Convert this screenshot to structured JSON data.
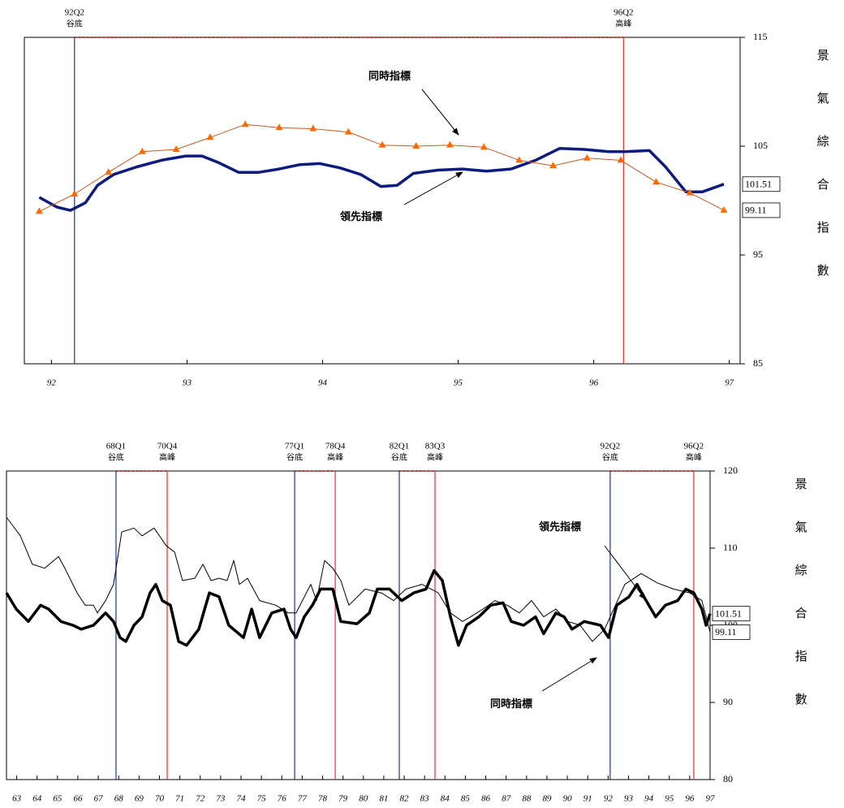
{
  "chart_data": [
    {
      "type": "line",
      "y_axis_title": "景氣綜合指數",
      "xlim": [
        91.8,
        97.08
      ],
      "xticks": [
        92,
        93,
        94,
        95,
        96,
        97
      ],
      "ylim": [
        85,
        115
      ],
      "yticks": [
        85,
        95,
        105,
        115
      ],
      "markers": [
        {
          "x": 92.17,
          "label": "92Q2",
          "note": "谷底",
          "color": "#1f2f9e"
        },
        {
          "x": 96.22,
          "label": "96Q2",
          "note": "高峰",
          "color": "#e0302a"
        }
      ],
      "series": [
        {
          "name": "領先指標",
          "color": "#0d1b7c",
          "x": [
            91.91,
            92.04,
            92.14,
            92.25,
            92.34,
            92.46,
            92.63,
            92.81,
            92.99,
            93.11,
            93.23,
            93.38,
            93.53,
            93.68,
            93.83,
            93.98,
            94.13,
            94.28,
            94.43,
            94.55,
            94.67,
            94.85,
            95.03,
            95.21,
            95.39,
            95.57,
            95.75,
            95.93,
            96.11,
            96.23,
            96.41,
            96.53,
            96.68,
            96.8,
            96.96
          ],
          "values": [
            100.3,
            99.4,
            99.1,
            99.8,
            101.4,
            102.4,
            103.1,
            103.7,
            104.1,
            104.1,
            103.5,
            102.6,
            102.6,
            102.9,
            103.3,
            103.4,
            103.0,
            102.4,
            101.3,
            101.4,
            102.5,
            102.8,
            102.9,
            102.7,
            102.9,
            103.7,
            104.8,
            104.7,
            104.5,
            104.5,
            104.6,
            103.1,
            100.8,
            100.8,
            101.51
          ]
        },
        {
          "name": "同時指標",
          "color": "#c55a1e",
          "marker": "triangle",
          "marker_color": "#ff6a00",
          "x": [
            91.91,
            92.17,
            92.42,
            92.67,
            92.92,
            93.17,
            93.43,
            93.68,
            93.93,
            94.19,
            94.44,
            94.69,
            94.94,
            95.19,
            95.45,
            95.7,
            95.95,
            96.2,
            96.46,
            96.71,
            96.96
          ],
          "values": [
            99.0,
            100.6,
            102.6,
            104.5,
            104.7,
            105.8,
            107.0,
            106.7,
            106.6,
            106.3,
            105.1,
            105.0,
            105.1,
            104.9,
            103.7,
            103.2,
            103.9,
            103.7,
            101.7,
            100.7,
            99.11
          ]
        }
      ]
    },
    {
      "type": "line",
      "y_axis_title": "景氣綜合指數",
      "xlim": [
        62.5,
        97
      ],
      "xticks": [
        63,
        64,
        65,
        66,
        67,
        68,
        69,
        70,
        71,
        72,
        73,
        74,
        75,
        76,
        77,
        78,
        79,
        80,
        81,
        82,
        83,
        84,
        85,
        86,
        87,
        88,
        89,
        90,
        91,
        92,
        93,
        94,
        95,
        96,
        97
      ],
      "ylim": [
        80,
        120
      ],
      "yticks": [
        80,
        90,
        100,
        110,
        120
      ],
      "markers": [
        {
          "x": 67.87,
          "label": "68Q1",
          "note": "谷底",
          "color": "#1f2f9e"
        },
        {
          "x": 70.38,
          "label": "70Q4",
          "note": "高峰",
          "color": "#e0302a"
        },
        {
          "x": 76.63,
          "label": "77Q1",
          "note": "谷底",
          "color": "#1f2f9e"
        },
        {
          "x": 78.62,
          "label": "78Q4",
          "note": "高峰",
          "color": "#e0302a"
        },
        {
          "x": 81.76,
          "label": "82Q1",
          "note": "谷底",
          "color": "#1f2f9e"
        },
        {
          "x": 83.51,
          "label": "83Q3",
          "note": "高峰",
          "color": "#e0302a"
        },
        {
          "x": 92.1,
          "label": "92Q2",
          "note": "谷底",
          "color": "#1f2f9e"
        },
        {
          "x": 96.2,
          "label": "96Q2",
          "note": "高峰",
          "color": "#e0302a"
        }
      ],
      "series": [
        {
          "name": "領先指標",
          "color": "#000000",
          "width": 3.5,
          "x": [
            62.5,
            62.98,
            63.57,
            64.17,
            64.57,
            65.17,
            65.76,
            66.16,
            66.76,
            67.36,
            67.75,
            68.07,
            68.35,
            68.75,
            69.15,
            69.54,
            69.82,
            70.14,
            70.54,
            70.94,
            71.33,
            71.93,
            72.45,
            72.92,
            73.4,
            74.12,
            74.52,
            74.91,
            75.51,
            76.11,
            76.43,
            76.7,
            77.1,
            77.5,
            77.9,
            78.5,
            78.89,
            79.69,
            80.29,
            80.68,
            81.28,
            81.88,
            82.47,
            83.07,
            83.47,
            83.87,
            84.27,
            84.66,
            85.06,
            85.66,
            86.25,
            86.85,
            87.25,
            87.85,
            88.44,
            88.84,
            89.44,
            89.84,
            90.23,
            90.83,
            91.63,
            92.02,
            92.42,
            93.02,
            93.42,
            93.82,
            94.33,
            94.81,
            95.41,
            95.81,
            96.2,
            96.6,
            96.8,
            97.0
          ],
          "values": [
            104.2,
            102.1,
            100.5,
            102.6,
            102.1,
            100.5,
            100.0,
            99.5,
            100.0,
            101.6,
            100.5,
            98.4,
            97.9,
            100.0,
            101.1,
            104.2,
            105.3,
            103.2,
            102.6,
            97.9,
            97.4,
            99.5,
            104.2,
            103.7,
            100.0,
            98.4,
            102.1,
            98.4,
            101.6,
            102.1,
            99.5,
            98.4,
            101.1,
            102.6,
            104.7,
            104.7,
            100.5,
            100.2,
            101.6,
            104.7,
            104.7,
            103.2,
            104.2,
            104.7,
            107.1,
            105.8,
            101.1,
            97.4,
            100.0,
            101.1,
            102.6,
            102.9,
            100.5,
            100.0,
            101.1,
            98.9,
            101.6,
            101.1,
            99.5,
            100.5,
            100.0,
            98.4,
            102.6,
            103.7,
            105.3,
            103.4,
            101.1,
            102.6,
            103.2,
            104.7,
            104.2,
            102.1,
            100.0,
            101.51
          ]
        },
        {
          "name": "同時指標",
          "color": "#000000",
          "width": 1,
          "x": [
            62.5,
            63.18,
            63.77,
            64.37,
            65.05,
            65.36,
            65.96,
            66.36,
            66.76,
            66.96,
            67.36,
            67.75,
            68.15,
            68.75,
            69.15,
            69.74,
            70.34,
            70.74,
            71.13,
            71.73,
            72.13,
            72.53,
            72.92,
            73.32,
            73.64,
            73.92,
            74.32,
            74.91,
            75.71,
            76.31,
            76.7,
            77.42,
            77.7,
            78.1,
            78.5,
            78.89,
            79.29,
            80.09,
            80.88,
            81.48,
            82.08,
            82.87,
            83.67,
            84.27,
            84.86,
            85.26,
            85.86,
            86.45,
            87.05,
            87.65,
            88.24,
            88.84,
            89.44,
            90.03,
            90.63,
            91.23,
            91.83,
            92.1,
            92.82,
            93.62,
            94.41,
            95.21,
            96.0,
            96.6,
            97.0
          ],
          "values": [
            114.0,
            111.6,
            107.9,
            107.4,
            108.9,
            107.4,
            104.2,
            102.6,
            102.6,
            101.6,
            103.2,
            105.3,
            112.1,
            112.6,
            111.6,
            112.6,
            110.3,
            109.5,
            105.8,
            106.1,
            107.9,
            105.8,
            106.1,
            105.8,
            108.4,
            105.3,
            106.1,
            103.2,
            102.6,
            101.6,
            101.6,
            105.3,
            103.2,
            108.4,
            107.4,
            105.8,
            102.6,
            104.7,
            104.2,
            103.2,
            104.7,
            105.3,
            104.2,
            101.6,
            100.5,
            101.1,
            102.1,
            103.2,
            102.6,
            101.6,
            103.2,
            101.1,
            102.1,
            100.5,
            100.0,
            97.9,
            99.5,
            101.1,
            105.3,
            106.7,
            105.5,
            104.7,
            104.2,
            103.2,
            99.11
          ]
        }
      ]
    }
  ]
}
